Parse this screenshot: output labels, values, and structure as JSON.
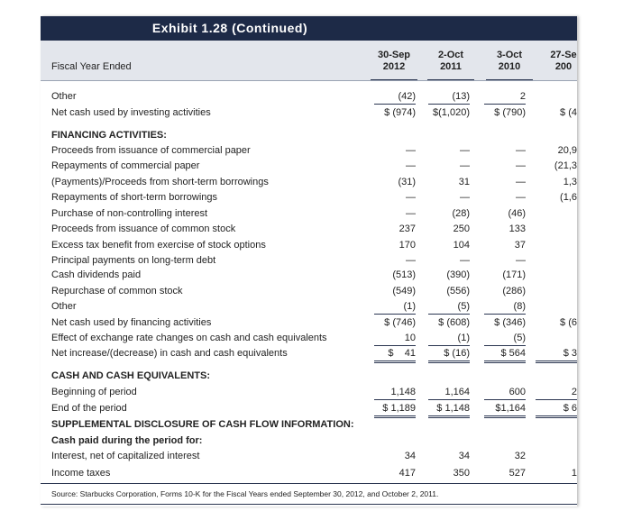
{
  "title": "Exhibit 1.28 (Continued)",
  "header": {
    "label": "Fiscal Year Ended",
    "columns": [
      [
        "30-Sep",
        "2012"
      ],
      [
        "2-Oct",
        "2011"
      ],
      [
        "3-Oct",
        "2010"
      ],
      [
        "27-Se",
        "200"
      ]
    ]
  },
  "table": {
    "rows": [
      {
        "label": "Other",
        "cells": [
          "(42)",
          "(13)",
          "2",
          ""
        ]
      },
      {
        "label": "Net cash used by investing activities",
        "cells": [
          "$ (974)",
          "$(1,020)",
          "$ (790)",
          "$ (4"
        ]
      },
      {
        "label": "FINANCING ACTIVITIES:"
      },
      {
        "label": "Proceeds from issuance of commercial paper",
        "cells": [
          "—",
          "—",
          "—",
          "20,9"
        ]
      },
      {
        "label": "Repayments of commercial paper",
        "cells": [
          "—",
          "—",
          "—",
          "(21,3"
        ]
      },
      {
        "label": "(Payments)/Proceeds from short-term borrowings",
        "cells": [
          "(31)",
          "31",
          "—",
          "1,3"
        ]
      },
      {
        "label": "Repayments of short-term borrowings",
        "cells": [
          "—",
          "—",
          "—",
          "(1,6"
        ]
      },
      {
        "label": "Purchase of non-controlling interest",
        "cells": [
          "—",
          "(28)",
          "(46)",
          ""
        ]
      },
      {
        "label": "Proceeds from issuance of common stock",
        "cells": [
          "237",
          "250",
          "133",
          ""
        ]
      },
      {
        "label": "Excess tax benefit from exercise of stock options",
        "cells": [
          "170",
          "104",
          "37",
          ""
        ]
      },
      {
        "label": "Principal payments on long-term debt",
        "cells": [
          "—",
          "—",
          "—",
          ""
        ]
      },
      {
        "label": "Cash dividends paid",
        "cells": [
          "(513)",
          "(390)",
          "(171)",
          ""
        ]
      },
      {
        "label": "Repurchase of common stock",
        "cells": [
          "(549)",
          "(556)",
          "(286)",
          ""
        ]
      },
      {
        "label": "Other",
        "cells": [
          "(1)",
          "(5)",
          "(8)",
          ""
        ]
      },
      {
        "label": "Net cash used by financing activities",
        "cells": [
          "$ (746)",
          "$ (608)",
          "$ (346)",
          "$ (6"
        ]
      },
      {
        "label": "Effect of exchange rate changes on cash and cash equivalents",
        "cells": [
          "10",
          "(1)",
          "(5)",
          ""
        ]
      },
      {
        "label": "Net increase/(decrease) in cash and cash equivalents",
        "cells": [
          "$    41",
          "$ (16)",
          "$ 564",
          "$ 3"
        ]
      },
      {
        "label": "CASH AND CASH EQUIVALENTS:"
      },
      {
        "label": "Beginning of period",
        "cells": [
          "1,148",
          "1,164",
          "600",
          "2"
        ]
      },
      {
        "label": "End of the period",
        "cells": [
          "$ 1,189",
          "$ 1,148",
          "$1,164",
          "$ 6"
        ]
      },
      {
        "label": "SUPPLEMENTAL DISCLOSURE OF CASH FLOW INFORMATION:"
      },
      {
        "label": "Cash paid during the period for:"
      },
      {
        "label": "Interest, net of capitalized interest",
        "cells": [
          "34",
          "34",
          "32",
          ""
        ]
      },
      {
        "label": "Income taxes",
        "cells": [
          "417",
          "350",
          "527",
          "1"
        ]
      }
    ]
  },
  "source": "Source: Starbucks Corporation, Forms 10-K for the Fiscal Years ended September 30, 2012, and October 2, 2011."
}
